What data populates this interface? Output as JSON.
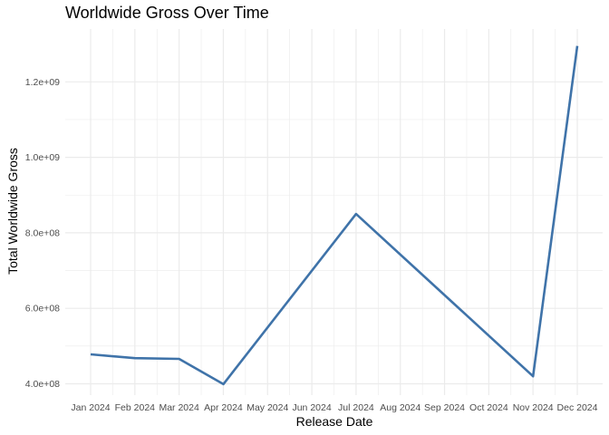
{
  "chart_data": {
    "type": "line",
    "title": "Worldwide Gross Over Time",
    "xlabel": "Release Date",
    "ylabel": "Total Worldwide Gross",
    "categories": [
      "Jan 2024",
      "Feb 2024",
      "Mar 2024",
      "Apr 2024",
      "May 2024",
      "Jun 2024",
      "Jul 2024",
      "Aug 2024",
      "Sep 2024",
      "Oct 2024",
      "Nov 2024",
      "Dec 2024"
    ],
    "series": [
      {
        "x": [
          "Jan 2024",
          "Feb 2024",
          "Mar 2024",
          "Apr 2024",
          "Jul 2024",
          "Nov 2024",
          "Dec 2024"
        ],
        "values": [
          478000000,
          468000000,
          466000000,
          399000000,
          850000000,
          420000000,
          1295000000
        ]
      }
    ],
    "yticks": [
      400000000,
      600000000,
      800000000,
      1000000000,
      1200000000
    ],
    "ytick_labels": [
      "4.0e+08",
      "6.0e+08",
      "8.0e+08",
      "1.0e+09",
      "1.2e+09"
    ],
    "ylim": [
      370000000,
      1340000000
    ],
    "grid": true,
    "line_color": "#3f73a9",
    "grid_color": "#ebebeb"
  }
}
